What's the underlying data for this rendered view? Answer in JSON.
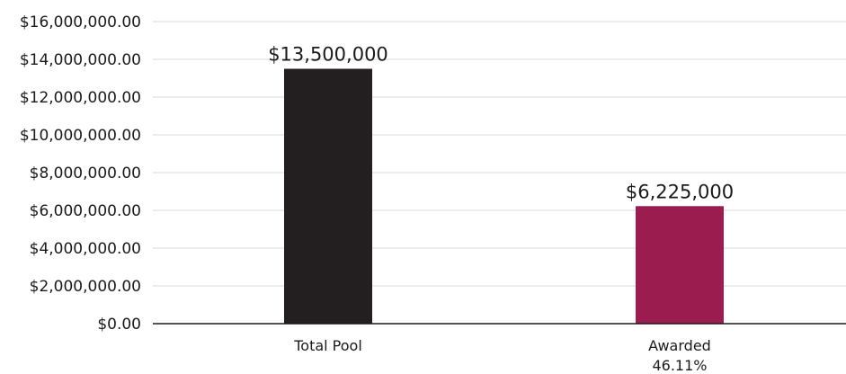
{
  "chart_data": {
    "type": "bar",
    "categories": [
      "Total Pool",
      "Awarded"
    ],
    "category_sublabels": [
      "",
      "46.11%"
    ],
    "values": [
      13500000,
      6225000
    ],
    "data_labels": [
      "$13,500,000",
      "$6,225,000"
    ],
    "colors": [
      "#231f20",
      "#9b1c4f"
    ],
    "ylim": [
      0,
      16000000
    ],
    "yticks": [
      0,
      2000000,
      4000000,
      6000000,
      8000000,
      10000000,
      12000000,
      14000000,
      16000000
    ],
    "ytick_labels": [
      "$0.00",
      "$2,000,000.00",
      "$4,000,000.00",
      "$6,000,000.00",
      "$8,000,000.00",
      "$10,000,000.00",
      "$12,000,000.00",
      "$14,000,000.00",
      "$16,000,000.00"
    ],
    "grid": true,
    "legend": "none"
  }
}
